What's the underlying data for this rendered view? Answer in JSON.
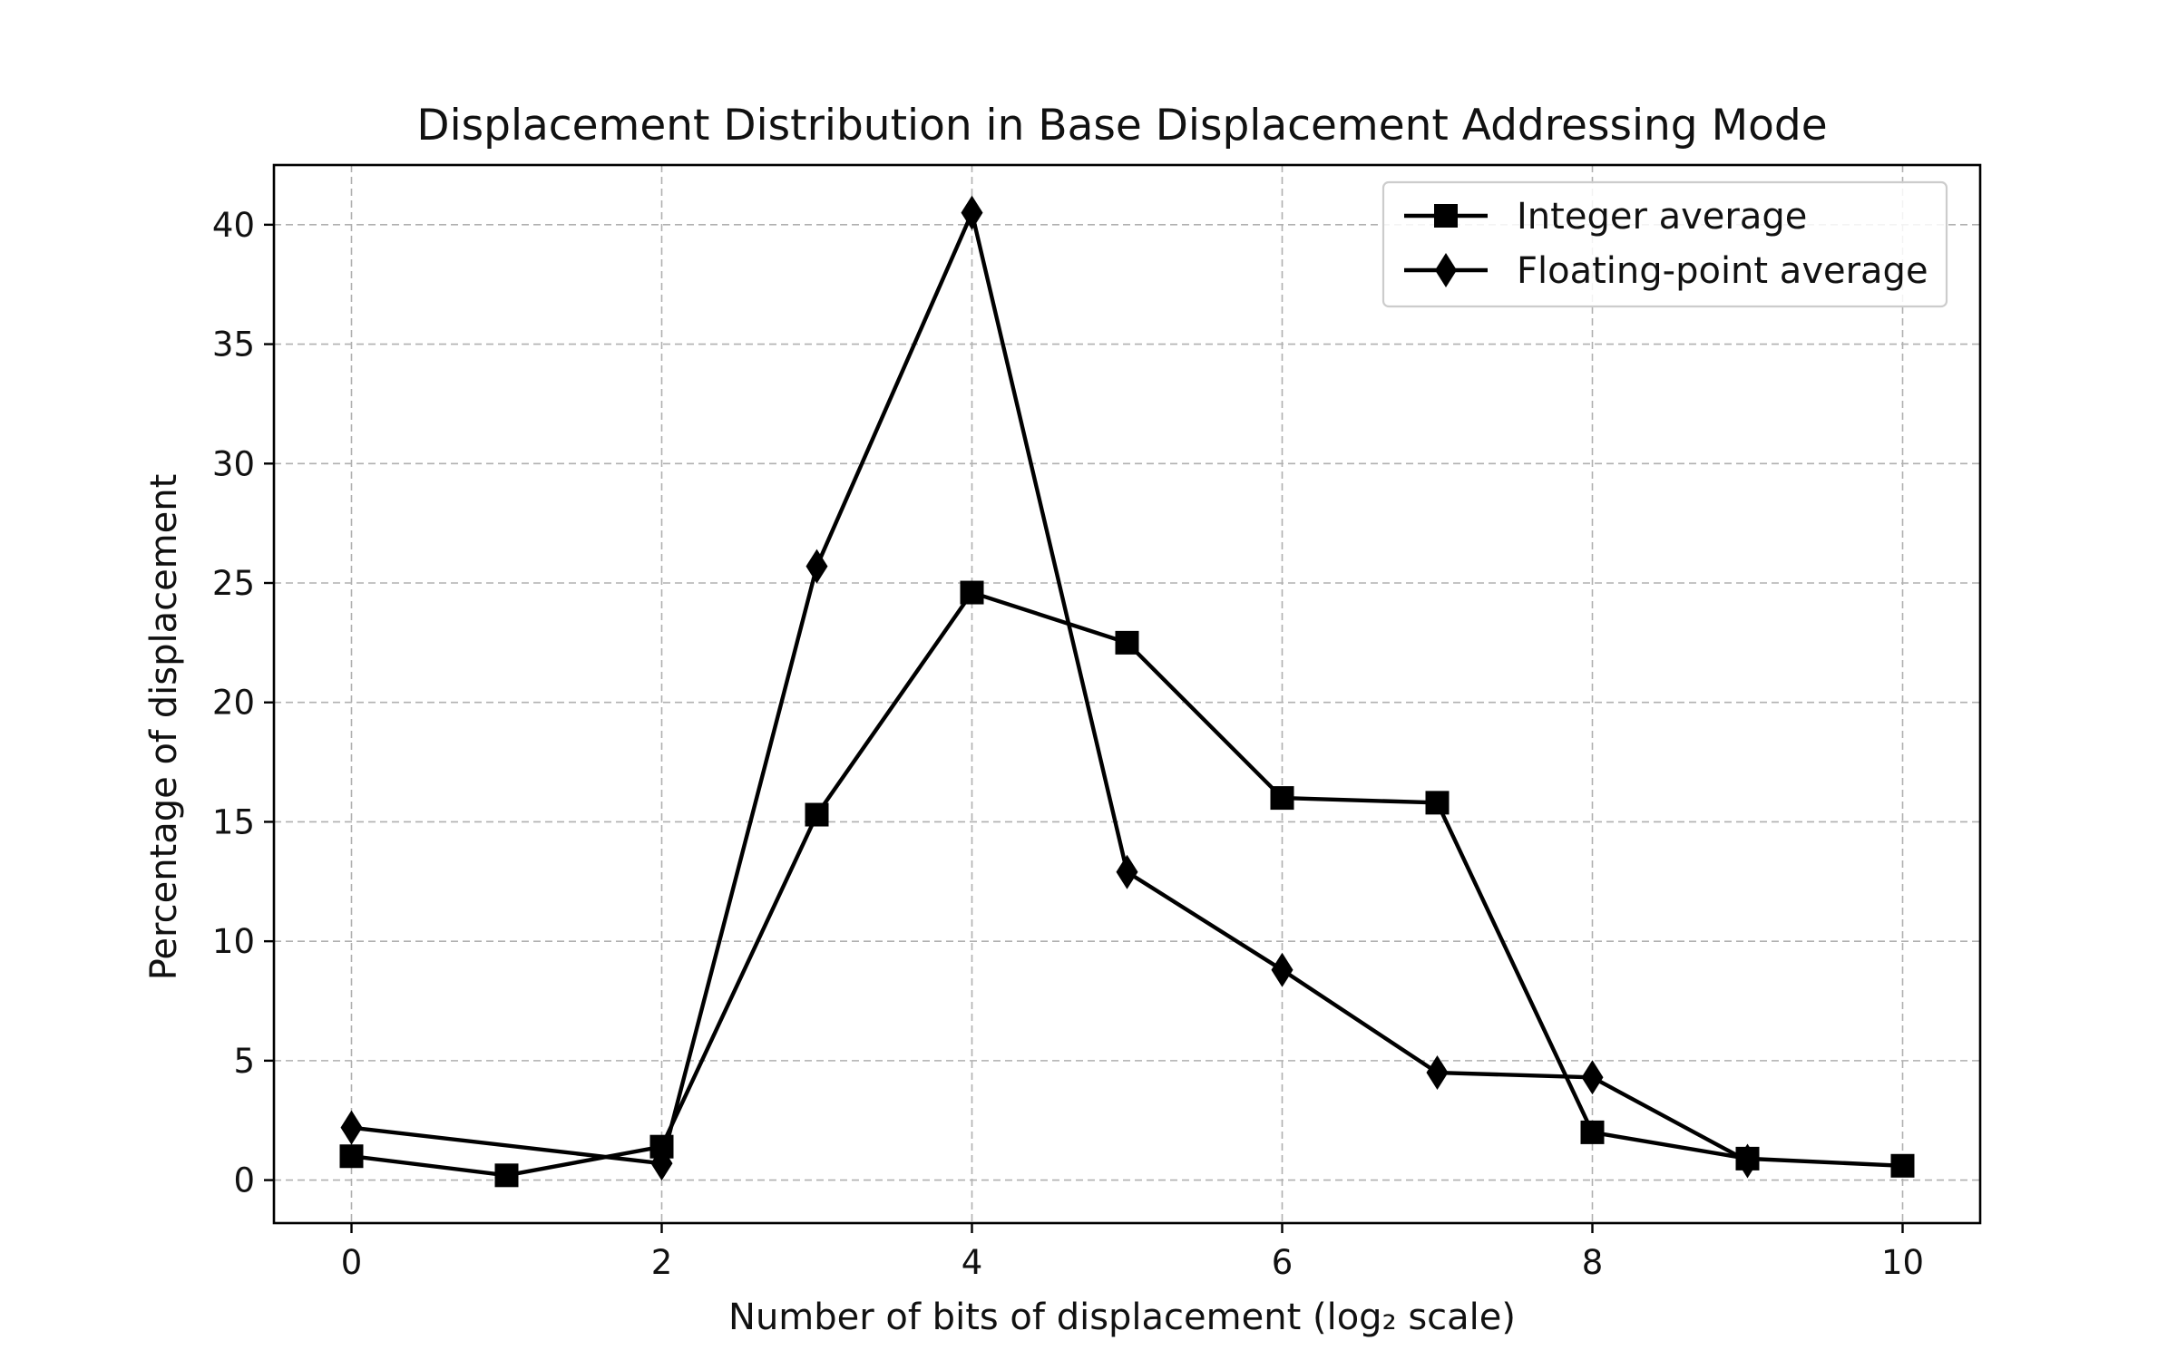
{
  "chart_data": {
    "type": "line",
    "title": "Displacement Distribution in Base Displacement Addressing Mode",
    "xlabel": "Number of bits of displacement (log₂ scale)",
    "ylabel": "Percentage of displacement",
    "xlim": [
      -0.5,
      10.5
    ],
    "ylim": [
      -1.8,
      42.5
    ],
    "xticks": [
      0,
      2,
      4,
      6,
      8,
      10
    ],
    "yticks": [
      0,
      5,
      10,
      15,
      20,
      25,
      30,
      35,
      40
    ],
    "grid": true,
    "legend_position": "top-right",
    "series": [
      {
        "name": "Integer average",
        "marker": "square",
        "color": "#000000",
        "x": [
          0,
          1,
          2,
          3,
          4,
          5,
          6,
          7,
          8,
          9,
          10
        ],
        "y": [
          1.0,
          0.2,
          1.4,
          15.3,
          24.6,
          22.5,
          16.0,
          15.8,
          2.0,
          0.9,
          0.6
        ]
      },
      {
        "name": "Floating-point average",
        "marker": "diamond",
        "color": "#000000",
        "x": [
          0,
          2,
          3,
          4,
          5,
          6,
          7,
          8,
          9
        ],
        "y": [
          2.2,
          0.7,
          25.7,
          40.5,
          12.9,
          8.8,
          4.5,
          4.3,
          0.8
        ]
      }
    ]
  }
}
